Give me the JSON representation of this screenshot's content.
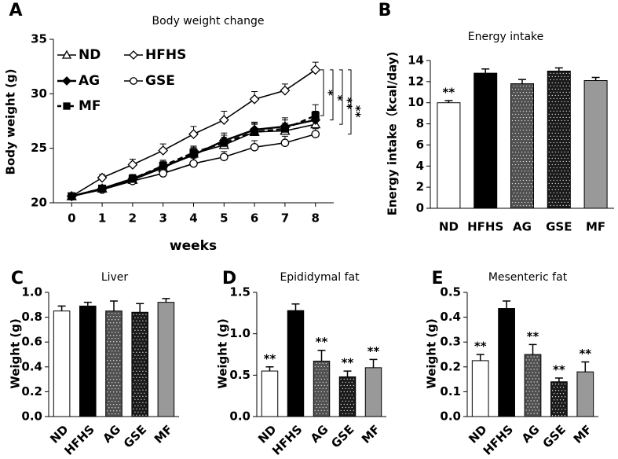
{
  "chart_data": [
    {
      "type": "line",
      "panel": "A",
      "title": "Body weight change",
      "x_label": "weeks",
      "y_label": "Body weight (g)",
      "x": [
        0,
        1,
        2,
        3,
        4,
        5,
        6,
        7,
        8
      ],
      "xlim": [
        -0.6,
        8.6
      ],
      "xticks": [
        0,
        1,
        2,
        3,
        4,
        5,
        6,
        7,
        8
      ],
      "ylim": [
        20,
        35
      ],
      "yticks": [
        20,
        25,
        30,
        35
      ],
      "series": [
        {
          "name": "ND",
          "color": "#000000",
          "marker": "triangle",
          "filled": false,
          "dashed": false,
          "values": [
            20.6,
            21.3,
            22.1,
            23.2,
            24.5,
            25.3,
            26.5,
            26.6,
            27.2
          ],
          "errors": [
            0.3,
            0.3,
            0.4,
            0.5,
            0.6,
            0.7,
            0.7,
            0.7,
            0.7
          ]
        },
        {
          "name": "HFHS",
          "color": "#000000",
          "marker": "diamond",
          "filled": false,
          "dashed": false,
          "values": [
            20.6,
            22.3,
            23.5,
            24.8,
            26.3,
            27.6,
            29.5,
            30.3,
            32.2
          ],
          "errors": [
            0.3,
            0.3,
            0.5,
            0.6,
            0.7,
            0.8,
            0.7,
            0.6,
            0.7
          ]
        },
        {
          "name": "AG",
          "color": "#000000",
          "marker": "diamond",
          "filled": true,
          "dashed": false,
          "values": [
            20.6,
            21.3,
            22.2,
            23.3,
            24.4,
            25.7,
            26.7,
            27.0,
            27.6
          ],
          "errors": [
            0.3,
            0.3,
            0.4,
            0.5,
            0.6,
            0.7,
            0.7,
            0.8,
            0.8
          ]
        },
        {
          "name": "GSE",
          "color": "#000000",
          "marker": "circle",
          "filled": false,
          "dashed": false,
          "values": [
            20.6,
            21.2,
            22.0,
            22.7,
            23.6,
            24.2,
            25.1,
            25.5,
            26.3
          ],
          "errors": [
            0.3,
            0.3,
            0.4,
            0.4,
            0.5,
            0.5,
            0.6,
            0.6,
            0.5
          ]
        },
        {
          "name": "MF",
          "color": "#000000",
          "marker": "square",
          "filled": true,
          "dashed": true,
          "values": [
            20.6,
            21.3,
            22.2,
            23.4,
            24.6,
            25.5,
            26.5,
            26.8,
            28.0
          ],
          "errors": [
            0.3,
            0.3,
            0.4,
            0.5,
            0.6,
            0.7,
            0.8,
            0.8,
            1.0
          ]
        }
      ],
      "annotations": [
        "*",
        "*",
        "**",
        "**"
      ]
    },
    {
      "type": "bar",
      "panel": "B",
      "title": "Energy intake",
      "y_label": "Energy intake（kcal/day)",
      "categories": [
        "ND",
        "HFHS",
        "AG",
        "GSE",
        "MF"
      ],
      "values": [
        10.0,
        12.8,
        11.8,
        13.0,
        12.1
      ],
      "errors": [
        0.2,
        0.4,
        0.4,
        0.3,
        0.3
      ],
      "significance": [
        "**",
        null,
        null,
        null,
        null
      ],
      "colors": [
        "#ffffff",
        "#000000",
        "#505050",
        "#1a1a1a",
        "#999999"
      ],
      "ylim": [
        0,
        14
      ],
      "yticks": [
        0,
        2,
        4,
        6,
        8,
        10,
        12,
        14
      ]
    },
    {
      "type": "bar",
      "panel": "C",
      "title": "Liver",
      "y_label": "Weight (g)",
      "categories": [
        "ND",
        "HFHS",
        "AG",
        "GSE",
        "MF"
      ],
      "values": [
        0.85,
        0.89,
        0.85,
        0.84,
        0.92
      ],
      "errors": [
        0.04,
        0.03,
        0.08,
        0.07,
        0.03
      ],
      "significance": [
        null,
        null,
        null,
        null,
        null
      ],
      "colors": [
        "#ffffff",
        "#000000",
        "#505050",
        "#1a1a1a",
        "#999999"
      ],
      "ylim": [
        0,
        1
      ],
      "yticks": [
        {
          "value": 0,
          "label": "0.0"
        },
        0.2,
        0.4,
        0.6,
        0.8,
        {
          "value": 1,
          "label": "1.0"
        }
      ]
    },
    {
      "type": "bar",
      "panel": "D",
      "title": "Epididymal fat",
      "y_label": "Weight (g)",
      "categories": [
        "ND",
        "HFHS",
        "AG",
        "GSE",
        "MF"
      ],
      "values": [
        0.55,
        1.28,
        0.67,
        0.48,
        0.59
      ],
      "errors": [
        0.05,
        0.08,
        0.13,
        0.07,
        0.1
      ],
      "significance": [
        "**",
        null,
        "**",
        "**",
        "**"
      ],
      "colors": [
        "#ffffff",
        "#000000",
        "#505050",
        "#1a1a1a",
        "#999999"
      ],
      "ylim": [
        0,
        1.5
      ],
      "yticks": [
        {
          "value": 0,
          "label": "0.0"
        },
        0.5,
        {
          "value": 1,
          "label": "1.0"
        },
        1.5
      ]
    },
    {
      "type": "bar",
      "panel": "E",
      "title": "Mesenteric fat",
      "y_label": "Weight (g)",
      "categories": [
        "ND",
        "HFHS",
        "AG",
        "GSE",
        "MF"
      ],
      "values": [
        0.225,
        0.435,
        0.25,
        0.14,
        0.18
      ],
      "errors": [
        0.025,
        0.03,
        0.04,
        0.015,
        0.04
      ],
      "significance": [
        "**",
        null,
        "**",
        "**",
        "**"
      ],
      "colors": [
        "#ffffff",
        "#000000",
        "#505050",
        "#1a1a1a",
        "#999999"
      ],
      "ylim": [
        0,
        0.5
      ],
      "yticks": [
        {
          "value": 0,
          "label": "0.0"
        },
        0.1,
        0.2,
        0.3,
        0.4,
        0.5
      ]
    }
  ]
}
